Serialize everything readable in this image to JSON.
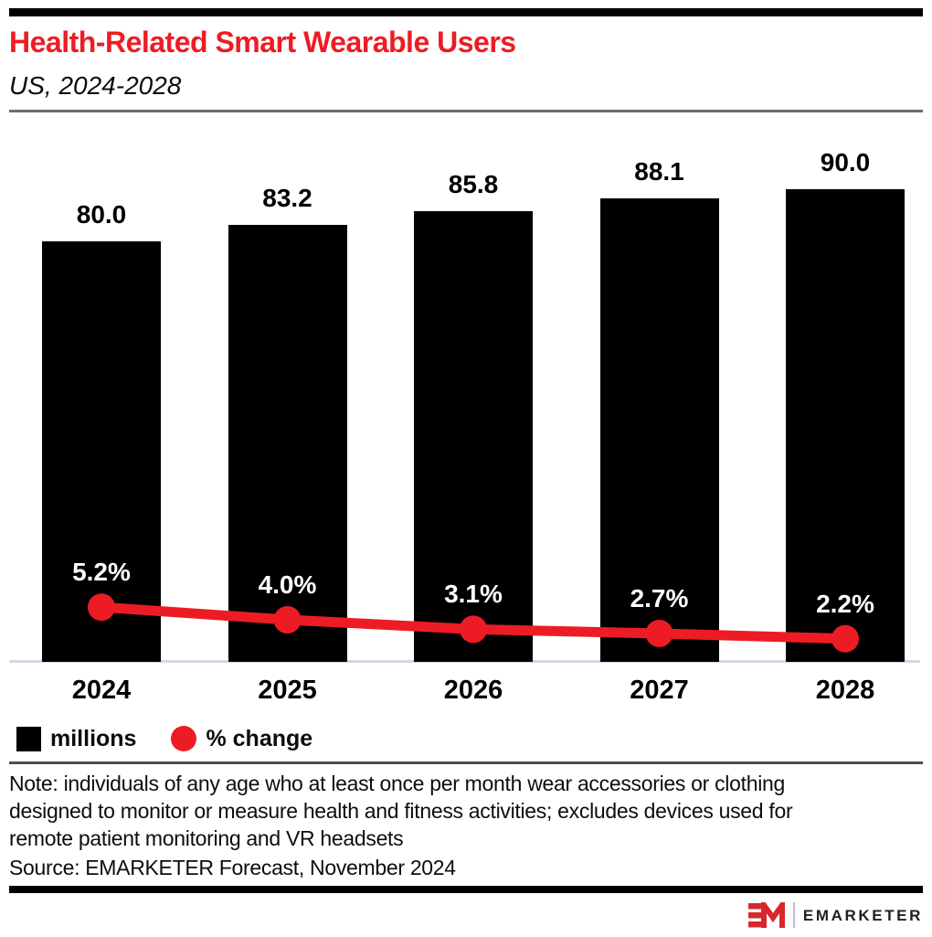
{
  "header": {
    "title": "Health-Related Smart Wearable Users",
    "subtitle": "US, 2024-2028"
  },
  "colors": {
    "accent_red": "#ed1c24",
    "logo_red": "#d7282e",
    "bar_black": "#000000",
    "axis_line": "#d3d7e6"
  },
  "chart_data": {
    "type": "bar",
    "title": "Health-Related Smart Wearable Users, US, 2024-2028",
    "categories": [
      "2024",
      "2025",
      "2026",
      "2027",
      "2028"
    ],
    "series": [
      {
        "name": "millions",
        "type": "bar",
        "color": "#000000",
        "values": [
          80.0,
          83.2,
          85.8,
          88.1,
          90.0
        ],
        "labels": [
          "80.0",
          "83.2",
          "85.8",
          "88.1",
          "90.0"
        ]
      },
      {
        "name": "% change",
        "type": "line",
        "color": "#ed1c24",
        "values": [
          5.2,
          4.0,
          3.1,
          2.7,
          2.2
        ],
        "labels": [
          "5.2%",
          "4.0%",
          "3.1%",
          "2.7%",
          "2.2%"
        ]
      }
    ],
    "bar_axis_range": [
      0,
      100
    ],
    "line_axis_range": [
      0,
      50
    ],
    "grid": false,
    "legend_position": "bottom"
  },
  "legend": {
    "items": [
      {
        "label": "millions",
        "swatch": "square",
        "color": "#000000"
      },
      {
        "label": "% change",
        "swatch": "circle",
        "color": "#ed1c24"
      }
    ]
  },
  "note": {
    "lines": [
      "Note: individuals of any age who at least once per month wear accessories or clothing",
      "designed to monitor or measure health and fitness activities; excludes devices used for",
      "remote patient monitoring and VR headsets"
    ]
  },
  "source": "Source: EMARKETER Forecast, November 2024",
  "footer": {
    "brand": "EMARKETER"
  }
}
